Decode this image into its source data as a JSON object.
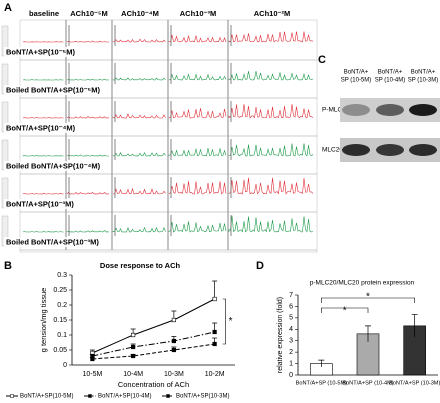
{
  "figure_a": {
    "label": "A",
    "columns": [
      "baseline",
      "ACh10⁻⁵M",
      "ACh10⁻⁴M",
      "ACh10⁻³M",
      "ACh10⁻²M"
    ],
    "rows": [
      {
        "label": "BoNT/A+SP(10⁻⁵M)",
        "color": "#e0303a"
      },
      {
        "label": "Boiled BoNT/A+SP(10⁻⁵M)",
        "color": "#1e9a4a"
      },
      {
        "label": "BoNT/A+SP(10⁻⁴M)",
        "color": "#e0303a"
      },
      {
        "label": "Boiled BoNT/A+SP(10⁻⁴M)",
        "color": "#1e9a4a"
      },
      {
        "label": "BoNT/A+SP(10⁻³M)",
        "color": "#e0303a"
      },
      {
        "label": "Boiled BoNT/A+SP(10⁻³M)",
        "color": "#1e9a4a"
      }
    ]
  },
  "figure_c": {
    "label": "C",
    "columns": [
      [
        "BoNT/A+",
        "SP (10-5M)"
      ],
      [
        "BoNT/A+",
        "SP (10-4M)"
      ],
      [
        "BoNT/A+",
        "SP (10-3M)"
      ]
    ],
    "rows": [
      "P-MLC20",
      "MLC20"
    ]
  },
  "chart_data": [
    {
      "type": "line",
      "panel": "B",
      "title": "Dose response to ACh",
      "x_label": "Concentration of ACh",
      "y_label": "g tension/mg tissue",
      "categories": [
        "10-5M",
        "10-4M",
        "10-3M",
        "10-2M"
      ],
      "ylim": [
        0,
        0.3
      ],
      "yticks": [
        0,
        0.05,
        0.1,
        0.15,
        0.2,
        0.25,
        0.3
      ],
      "annotations": [
        "*"
      ],
      "series": [
        {
          "name": "BoNT/A+SP(10-5M)",
          "color": "#000000",
          "line_style": "solid",
          "values": [
            0.04,
            0.1,
            0.15,
            0.22
          ],
          "errors": [
            0.01,
            0.02,
            0.03,
            0.06
          ]
        },
        {
          "name": "BoNT/A+SP(10-4M)",
          "color": "#000000",
          "line_style": "dashdot",
          "values": [
            0.03,
            0.06,
            0.08,
            0.11
          ],
          "errors": [
            0.005,
            0.01,
            0.015,
            0.03
          ]
        },
        {
          "name": "BoNT/A+SP(10-3M)",
          "color": "#000000",
          "line_style": "dashed",
          "values": [
            0.02,
            0.03,
            0.05,
            0.07
          ],
          "errors": [
            0.005,
            0.005,
            0.01,
            0.02
          ]
        }
      ]
    },
    {
      "type": "bar",
      "panel": "D",
      "title": "p-MLC20/MLC20 protein expression",
      "y_label": "relative expression (fold)",
      "categories": [
        "BoNT/A+SP (10-5M)",
        "BoNT/A+SP (10-4M)",
        "BoNT/A+SP (10-3M)"
      ],
      "values": [
        1.0,
        3.6,
        4.3
      ],
      "errors": [
        0.3,
        0.7,
        1.0
      ],
      "colors": [
        "#ffffff",
        "#aaaaaa",
        "#333333"
      ],
      "ylim": [
        0,
        7
      ],
      "yticks": [
        0,
        1,
        2,
        3,
        4,
        5,
        6,
        7
      ],
      "annotations": [
        "*",
        "*"
      ]
    }
  ]
}
